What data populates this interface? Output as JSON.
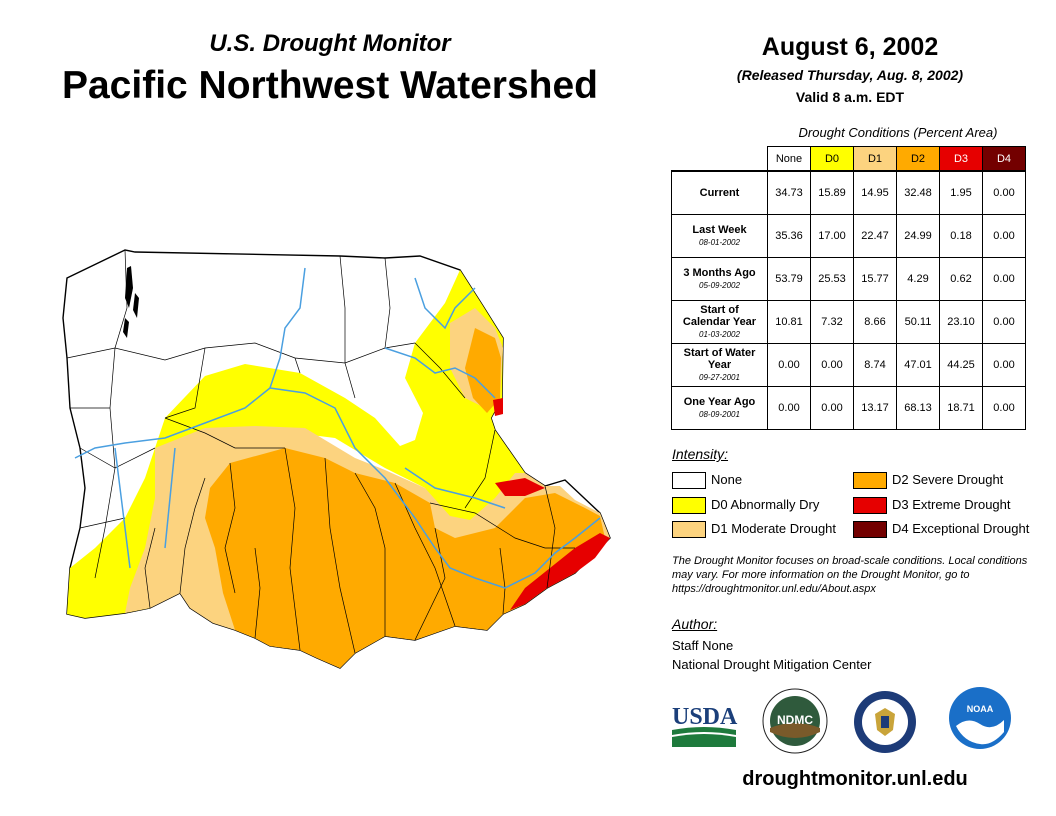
{
  "header": {
    "subtitle": "U.S. Drought Monitor",
    "title": "Pacific Northwest Watershed",
    "date": "August 6, 2002",
    "released": "(Released Thursday, Aug. 8, 2002)",
    "valid": "Valid 8 a.m. EDT"
  },
  "table": {
    "caption": "Drought Conditions (Percent Area)",
    "columns": [
      "None",
      "D0",
      "D1",
      "D2",
      "D3",
      "D4"
    ],
    "column_colors": [
      "#ffffff",
      "#ffff00",
      "#fcd37f",
      "#ffaa00",
      "#e60000",
      "#730000"
    ],
    "rows": [
      {
        "label": "Current",
        "date": "",
        "values": [
          "34.73",
          "15.89",
          "14.95",
          "32.48",
          "1.95",
          "0.00"
        ]
      },
      {
        "label": "Last Week",
        "date": "08-01-2002",
        "values": [
          "35.36",
          "17.00",
          "22.47",
          "24.99",
          "0.18",
          "0.00"
        ]
      },
      {
        "label": "3 Months Ago",
        "date": "05-09-2002",
        "values": [
          "53.79",
          "25.53",
          "15.77",
          "4.29",
          "0.62",
          "0.00"
        ]
      },
      {
        "label": "Start of Calendar Year",
        "date": "01-03-2002",
        "values": [
          "10.81",
          "7.32",
          "8.66",
          "50.11",
          "23.10",
          "0.00"
        ]
      },
      {
        "label": "Start of Water Year",
        "date": "09-27-2001",
        "values": [
          "0.00",
          "0.00",
          "8.74",
          "47.01",
          "44.25",
          "0.00"
        ]
      },
      {
        "label": "One Year Ago",
        "date": "08-09-2001",
        "values": [
          "0.00",
          "0.00",
          "13.17",
          "68.13",
          "18.71",
          "0.00"
        ]
      }
    ]
  },
  "legend": {
    "title": "Intensity:",
    "items": [
      {
        "label": "None",
        "color": "#ffffff"
      },
      {
        "label": "D0 Abnormally Dry",
        "color": "#ffff00"
      },
      {
        "label": "D1 Moderate Drought",
        "color": "#fcd37f"
      },
      {
        "label": "D2 Severe Drought",
        "color": "#ffaa00"
      },
      {
        "label": "D3 Extreme Drought",
        "color": "#e60000"
      },
      {
        "label": "D4 Exceptional Drought",
        "color": "#730000"
      }
    ]
  },
  "note": "The Drought Monitor focuses on broad-scale conditions. Local conditions may vary. For more information on the Drought Monitor, go to https://droughtmonitor.unl.edu/About.aspx",
  "author": {
    "title": "Author:",
    "name": "Staff None",
    "org": "National Drought Mitigation Center"
  },
  "logos": {
    "usda": "USDA",
    "ndmc": "NDMC",
    "noaa": "NOAA"
  },
  "url": "droughtmonitor.unl.edu",
  "colors": {
    "river": "#4a9fe0",
    "none": "#ffffff",
    "d0": "#ffff00",
    "d1": "#fcd37f",
    "d2": "#ffaa00",
    "d3": "#e60000",
    "d4": "#730000"
  }
}
